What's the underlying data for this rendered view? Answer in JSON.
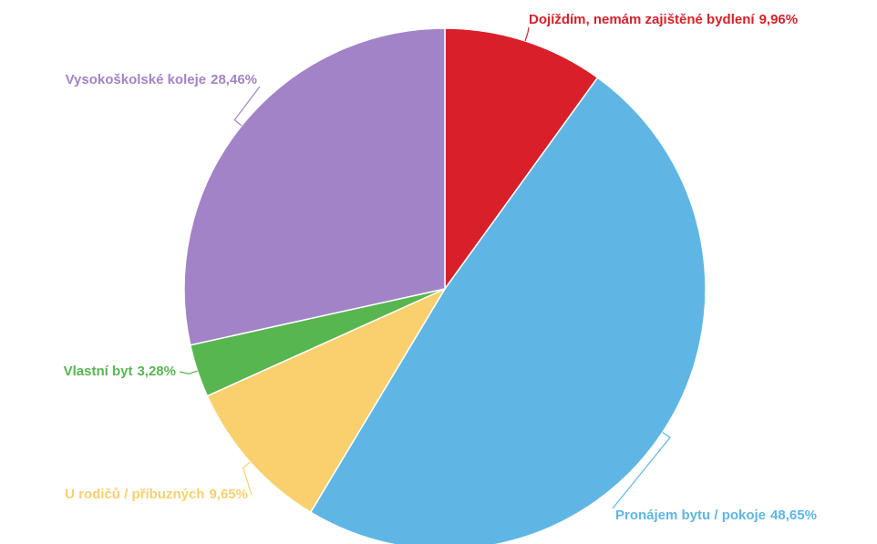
{
  "chart_data": {
    "type": "pie",
    "categories": [
      "Dojíždím, nemám zajištěné bydlení",
      "Pronájem bytu / pokoje",
      "U rodičů / příbuzných",
      "Vlastní byt",
      "Vysokoškolské koleje"
    ],
    "values": [
      9.96,
      48.65,
      9.65,
      3.28,
      28.46
    ],
    "value_labels": [
      "9,96%",
      "48,65%",
      "9,65%",
      "3,28%",
      "28,46%"
    ],
    "colors": [
      "#d9202a",
      "#5fb6e4",
      "#fad06e",
      "#57b64f",
      "#a383c7"
    ]
  }
}
